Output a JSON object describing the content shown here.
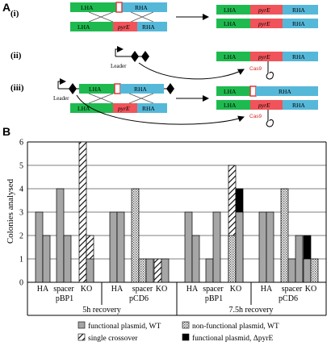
{
  "panel_a": {
    "panel_label": "A",
    "rows": [
      {
        "label": "(i)"
      },
      {
        "label": "(ii)"
      },
      {
        "label": "(iii)"
      }
    ],
    "construct": {
      "lha": "LHA",
      "rha": "RHA",
      "gene": "pyrE"
    },
    "leader": "Leader",
    "cas": "Cas9"
  },
  "panel_b": {
    "panel_label": "B",
    "ylabel": "Colonies analysed",
    "recovery_labels": [
      "5h recovery",
      "7.5h recovery"
    ],
    "plasmid_labels": [
      "pBP1",
      "pCD6",
      "pBP1",
      "pCD6"
    ],
    "group_labels": [
      "HA",
      "spacer",
      "KO"
    ],
    "legend": [
      {
        "key": "fpwt",
        "label": "functional plasmid, WT"
      },
      {
        "key": "nfpwt",
        "label": "non-functional plasmid, WT"
      },
      {
        "key": "sc",
        "label": "single crossover"
      },
      {
        "key": "fpko",
        "label": "functional plasmid, ΔpyrE"
      }
    ]
  },
  "chart_data": {
    "type": "bar",
    "ylabel": "Colonies analysed",
    "ylim": [
      0,
      6
    ],
    "yticks": [
      0,
      1,
      2,
      3,
      4,
      5,
      6
    ],
    "legend_position": "bottom",
    "clusters": [
      {
        "recovery": "5h recovery",
        "plasmid": "pBP1",
        "group": "HA",
        "bars": [
          {
            "s": "fpwt",
            "v": 3
          },
          {
            "s": "fpwt",
            "v": 2
          }
        ]
      },
      {
        "recovery": "5h recovery",
        "plasmid": "pBP1",
        "group": "spacer",
        "bars": [
          {
            "s": "fpwt",
            "v": 4
          },
          {
            "s": "fpwt",
            "v": 2
          }
        ]
      },
      {
        "recovery": "5h recovery",
        "plasmid": "pBP1",
        "group": "KO",
        "bars": [
          {
            "s": "sc",
            "v": 6
          },
          {
            "s": "sc",
            "v": 2,
            "under": {
              "s": "fpwt",
              "v": 1
            }
          }
        ]
      },
      {
        "recovery": "5h recovery",
        "plasmid": "pCD6",
        "group": "HA",
        "bars": [
          {
            "s": "fpwt",
            "v": 3
          },
          {
            "s": "fpwt",
            "v": 3
          }
        ]
      },
      {
        "recovery": "5h recovery",
        "plasmid": "pCD6",
        "group": "spacer",
        "bars": [
          {
            "s": "nfpwt",
            "v": 4
          },
          {
            "s": "nfpwt",
            "v": 1
          },
          {
            "s": "fpwt",
            "v": 1
          }
        ]
      },
      {
        "recovery": "5h recovery",
        "plasmid": "pCD6",
        "group": "KO",
        "bars": [
          {
            "s": "sc",
            "v": 1
          },
          {
            "s": "fpwt",
            "v": 1
          }
        ]
      },
      {
        "recovery": "7.5h recovery",
        "plasmid": "pBP1",
        "group": "HA",
        "bars": [
          {
            "s": "fpwt",
            "v": 3
          },
          {
            "s": "fpwt",
            "v": 2
          }
        ]
      },
      {
        "recovery": "7.5h recovery",
        "plasmid": "pBP1",
        "group": "spacer",
        "bars": [
          {
            "s": "fpwt",
            "v": 1
          },
          {
            "s": "fpwt",
            "v": 3
          }
        ]
      },
      {
        "recovery": "7.5h recovery",
        "plasmid": "pBP1",
        "group": "KO",
        "bars": [
          {
            "s": "sc",
            "v": 5,
            "under": {
              "s": "nfpwt",
              "v": 2
            }
          },
          {
            "s": "fpko",
            "v": 4,
            "under": {
              "s": "fpwt",
              "v": 3
            }
          }
        ]
      },
      {
        "recovery": "7.5h recovery",
        "plasmid": "pCD6",
        "group": "HA",
        "bars": [
          {
            "s": "fpwt",
            "v": 3
          },
          {
            "s": "fpwt",
            "v": 3
          }
        ]
      },
      {
        "recovery": "7.5h recovery",
        "plasmid": "pCD6",
        "group": "spacer",
        "bars": [
          {
            "s": "nfpwt",
            "v": 4
          },
          {
            "s": "fpwt",
            "v": 1
          },
          {
            "s": "fpwt",
            "v": 2
          }
        ]
      },
      {
        "recovery": "7.5h recovery",
        "plasmid": "pCD6",
        "group": "KO",
        "bars": [
          {
            "s": "fpko",
            "v": 2,
            "under": {
              "s": "fpwt",
              "v": 1
            }
          },
          {
            "s": "nfpwt",
            "v": 1
          }
        ]
      }
    ]
  }
}
